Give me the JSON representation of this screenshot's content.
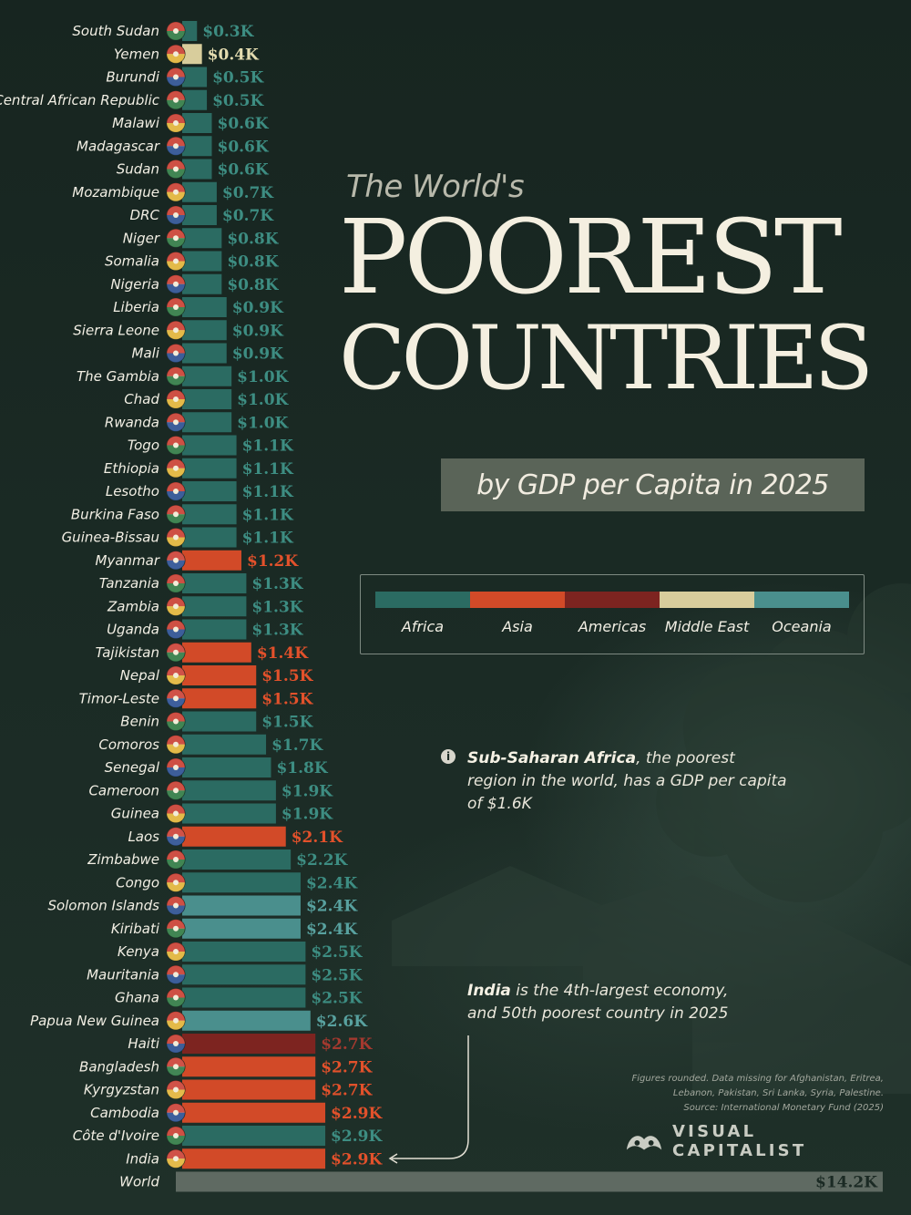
{
  "title": {
    "pre": "The World's",
    "main_line1": "POOREST",
    "main_line2": "COUNTRIES",
    "subtitle": "by GDP per Capita in 2025"
  },
  "colors": {
    "Africa": "#2b6b62",
    "Asia": "#d24a28",
    "Americas": "#7d2420",
    "Middle East": "#d8cd9c",
    "Oceania": "#4a8f8d",
    "World": "#5f6a62",
    "background": "#1b2a24"
  },
  "legend": [
    "Africa",
    "Asia",
    "Americas",
    "Middle East",
    "Oceania"
  ],
  "notes": {
    "africa_bold": "Sub-Saharan Africa",
    "africa_rest": ", the poorest region in the world, has a GDP per capita of $1.6K",
    "india_bold": "India",
    "india_rest": " is the 4th-largest economy, and 50th poorest country in 2025"
  },
  "footnote": {
    "line1": "Figures rounded. Data missing for Afghanistan, Eritrea,",
    "line2": "Lebanon, Pakistan, Sri Lanka, Syria, Palestine.",
    "line3": "Source: International Monetary Fund (2025)"
  },
  "brand": "VISUAL CAPITALIST",
  "chart_data": {
    "type": "bar",
    "orientation": "horizontal",
    "unit": "USD thousands (GDP per capita)",
    "bars": [
      {
        "country": "South Sudan",
        "region": "Africa",
        "value": 0.3,
        "label": "$0.3K",
        "flag": "south-sudan-flag-icon"
      },
      {
        "country": "Yemen",
        "region": "Middle East",
        "value": 0.4,
        "label": "$0.4K",
        "flag": "yemen-flag-icon"
      },
      {
        "country": "Burundi",
        "region": "Africa",
        "value": 0.5,
        "label": "$0.5K",
        "flag": "burundi-flag-icon"
      },
      {
        "country": "Central African Republic",
        "region": "Africa",
        "value": 0.5,
        "label": "$0.5K",
        "flag": "central-african-republic-flag-icon"
      },
      {
        "country": "Malawi",
        "region": "Africa",
        "value": 0.6,
        "label": "$0.6K",
        "flag": "malawi-flag-icon"
      },
      {
        "country": "Madagascar",
        "region": "Africa",
        "value": 0.6,
        "label": "$0.6K",
        "flag": "madagascar-flag-icon"
      },
      {
        "country": "Sudan",
        "region": "Africa",
        "value": 0.6,
        "label": "$0.6K",
        "flag": "sudan-flag-icon"
      },
      {
        "country": "Mozambique",
        "region": "Africa",
        "value": 0.7,
        "label": "$0.7K",
        "flag": "mozambique-flag-icon"
      },
      {
        "country": "DRC",
        "region": "Africa",
        "value": 0.7,
        "label": "$0.7K",
        "flag": "drc-flag-icon"
      },
      {
        "country": "Niger",
        "region": "Africa",
        "value": 0.8,
        "label": "$0.8K",
        "flag": "niger-flag-icon"
      },
      {
        "country": "Somalia",
        "region": "Africa",
        "value": 0.8,
        "label": "$0.8K",
        "flag": "somalia-flag-icon"
      },
      {
        "country": "Nigeria",
        "region": "Africa",
        "value": 0.8,
        "label": "$0.8K",
        "flag": "nigeria-flag-icon"
      },
      {
        "country": "Liberia",
        "region": "Africa",
        "value": 0.9,
        "label": "$0.9K",
        "flag": "liberia-flag-icon"
      },
      {
        "country": "Sierra Leone",
        "region": "Africa",
        "value": 0.9,
        "label": "$0.9K",
        "flag": "sierra-leone-flag-icon"
      },
      {
        "country": "Mali",
        "region": "Africa",
        "value": 0.9,
        "label": "$0.9K",
        "flag": "mali-flag-icon"
      },
      {
        "country": "The Gambia",
        "region": "Africa",
        "value": 1.0,
        "label": "$1.0K",
        "flag": "gambia-flag-icon"
      },
      {
        "country": "Chad",
        "region": "Africa",
        "value": 1.0,
        "label": "$1.0K",
        "flag": "chad-flag-icon"
      },
      {
        "country": "Rwanda",
        "region": "Africa",
        "value": 1.0,
        "label": "$1.0K",
        "flag": "rwanda-flag-icon"
      },
      {
        "country": "Togo",
        "region": "Africa",
        "value": 1.1,
        "label": "$1.1K",
        "flag": "togo-flag-icon"
      },
      {
        "country": "Ethiopia",
        "region": "Africa",
        "value": 1.1,
        "label": "$1.1K",
        "flag": "ethiopia-flag-icon"
      },
      {
        "country": "Lesotho",
        "region": "Africa",
        "value": 1.1,
        "label": "$1.1K",
        "flag": "lesotho-flag-icon"
      },
      {
        "country": "Burkina Faso",
        "region": "Africa",
        "value": 1.1,
        "label": "$1.1K",
        "flag": "burkina-faso-flag-icon"
      },
      {
        "country": "Guinea-Bissau",
        "region": "Africa",
        "value": 1.1,
        "label": "$1.1K",
        "flag": "guinea-bissau-flag-icon"
      },
      {
        "country": "Myanmar",
        "region": "Asia",
        "value": 1.2,
        "label": "$1.2K",
        "flag": "myanmar-flag-icon"
      },
      {
        "country": "Tanzania",
        "region": "Africa",
        "value": 1.3,
        "label": "$1.3K",
        "flag": "tanzania-flag-icon"
      },
      {
        "country": "Zambia",
        "region": "Africa",
        "value": 1.3,
        "label": "$1.3K",
        "flag": "zambia-flag-icon"
      },
      {
        "country": "Uganda",
        "region": "Africa",
        "value": 1.3,
        "label": "$1.3K",
        "flag": "uganda-flag-icon"
      },
      {
        "country": "Tajikistan",
        "region": "Asia",
        "value": 1.4,
        "label": "$1.4K",
        "flag": "tajikistan-flag-icon"
      },
      {
        "country": "Nepal",
        "region": "Asia",
        "value": 1.5,
        "label": "$1.5K",
        "flag": "nepal-flag-icon"
      },
      {
        "country": "Timor-Leste",
        "region": "Asia",
        "value": 1.5,
        "label": "$1.5K",
        "flag": "timor-leste-flag-icon"
      },
      {
        "country": "Benin",
        "region": "Africa",
        "value": 1.5,
        "label": "$1.5K",
        "flag": "benin-flag-icon"
      },
      {
        "country": "Comoros",
        "region": "Africa",
        "value": 1.7,
        "label": "$1.7K",
        "flag": "comoros-flag-icon"
      },
      {
        "country": "Senegal",
        "region": "Africa",
        "value": 1.8,
        "label": "$1.8K",
        "flag": "senegal-flag-icon"
      },
      {
        "country": "Cameroon",
        "region": "Africa",
        "value": 1.9,
        "label": "$1.9K",
        "flag": "cameroon-flag-icon"
      },
      {
        "country": "Guinea",
        "region": "Africa",
        "value": 1.9,
        "label": "$1.9K",
        "flag": "guinea-flag-icon"
      },
      {
        "country": "Laos",
        "region": "Asia",
        "value": 2.1,
        "label": "$2.1K",
        "flag": "laos-flag-icon"
      },
      {
        "country": "Zimbabwe",
        "region": "Africa",
        "value": 2.2,
        "label": "$2.2K",
        "flag": "zimbabwe-flag-icon"
      },
      {
        "country": "Congo",
        "region": "Africa",
        "value": 2.4,
        "label": "$2.4K",
        "flag": "congo-flag-icon"
      },
      {
        "country": "Solomon Islands",
        "region": "Oceania",
        "value": 2.4,
        "label": "$2.4K",
        "flag": "solomon-islands-flag-icon"
      },
      {
        "country": "Kiribati",
        "region": "Oceania",
        "value": 2.4,
        "label": "$2.4K",
        "flag": "kiribati-flag-icon"
      },
      {
        "country": "Kenya",
        "region": "Africa",
        "value": 2.5,
        "label": "$2.5K",
        "flag": "kenya-flag-icon"
      },
      {
        "country": "Mauritania",
        "region": "Africa",
        "value": 2.5,
        "label": "$2.5K",
        "flag": "mauritania-flag-icon"
      },
      {
        "country": "Ghana",
        "region": "Africa",
        "value": 2.5,
        "label": "$2.5K",
        "flag": "ghana-flag-icon"
      },
      {
        "country": "Papua New Guinea",
        "region": "Oceania",
        "value": 2.6,
        "label": "$2.6K",
        "flag": "papua-new-guinea-flag-icon"
      },
      {
        "country": "Haiti",
        "region": "Americas",
        "value": 2.7,
        "label": "$2.7K",
        "flag": "haiti-flag-icon"
      },
      {
        "country": "Bangladesh",
        "region": "Asia",
        "value": 2.7,
        "label": "$2.7K",
        "flag": "bangladesh-flag-icon"
      },
      {
        "country": "Kyrgyzstan",
        "region": "Asia",
        "value": 2.7,
        "label": "$2.7K",
        "flag": "kyrgyzstan-flag-icon"
      },
      {
        "country": "Cambodia",
        "region": "Asia",
        "value": 2.9,
        "label": "$2.9K",
        "flag": "cambodia-flag-icon"
      },
      {
        "country": "Côte d'Ivoire",
        "region": "Africa",
        "value": 2.9,
        "label": "$2.9K",
        "flag": "cote-divoire-flag-icon"
      },
      {
        "country": "India",
        "region": "Asia",
        "value": 2.9,
        "label": "$2.9K",
        "flag": "india-flag-icon"
      },
      {
        "country": "World",
        "region": "World",
        "value": 14.2,
        "label": "$14.2K",
        "flag": ""
      }
    ]
  }
}
